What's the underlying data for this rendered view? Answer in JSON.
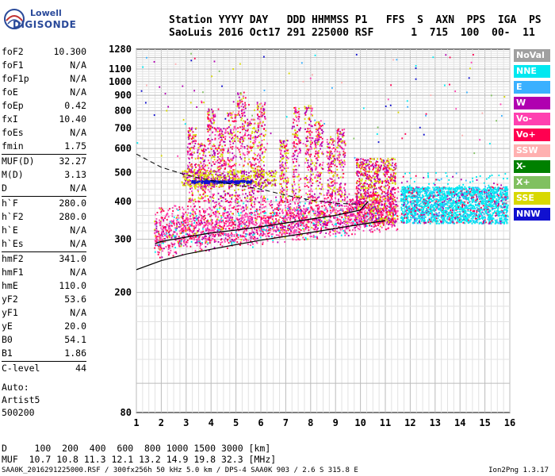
{
  "logo": {
    "line1": "Lowell",
    "line2": "DIGISONDE"
  },
  "header": {
    "line1": "Station YYYY DAY   DDD HHMMSS P1   FFS  S  AXN  PPS  IGA  PS",
    "line2": "SaoLuis 2016 Oct17 291 225000 RSF      1  715  100  00-  11"
  },
  "params": [
    [
      {
        "name": "foF2",
        "value": "10.300"
      },
      {
        "name": "foF1",
        "value": "N/A"
      },
      {
        "name": "foF1p",
        "value": "N/A"
      },
      {
        "name": "foE",
        "value": "N/A"
      },
      {
        "name": "foEp",
        "value": "0.42"
      },
      {
        "name": "fxI",
        "value": "10.40"
      },
      {
        "name": "foEs",
        "value": "N/A"
      },
      {
        "name": "fmin",
        "value": "1.75"
      }
    ],
    [
      {
        "name": "MUF(D)",
        "value": "32.27"
      },
      {
        "name": "M(D)",
        "value": "3.13"
      },
      {
        "name": "D",
        "value": "N/A"
      }
    ],
    [
      {
        "name": "h`F",
        "value": "280.0"
      },
      {
        "name": "h`F2",
        "value": "280.0"
      },
      {
        "name": "h`E",
        "value": "N/A"
      },
      {
        "name": "h`Es",
        "value": "N/A"
      }
    ],
    [
      {
        "name": "hmF2",
        "value": "341.0"
      },
      {
        "name": "hmF1",
        "value": "N/A"
      },
      {
        "name": "hmE",
        "value": "110.0"
      },
      {
        "name": "yF2",
        "value": "53.6"
      },
      {
        "name": "yF1",
        "value": "N/A"
      },
      {
        "name": "yE",
        "value": "20.0"
      },
      {
        "name": "B0",
        "value": "54.1"
      },
      {
        "name": "B1",
        "value": "1.86"
      }
    ],
    [
      {
        "name": "C-level",
        "value": "44"
      }
    ]
  ],
  "auto": {
    "line1": "Auto:",
    "line2": "Artist5",
    "line3": "500200"
  },
  "bottom": {
    "d_line": "D     100  200  400  600  800 1000 1500 3000 [km]",
    "muf_line": "MUF  10.7 10.8 11.3 12.1 13.2 14.9 19.8 32.3 [MHz]"
  },
  "footer": {
    "left": "SAA0K_2016291225000.RSF / 300fx256h 50 kHz 5.0 km / DPS-4 SAA0K 903 / 2.6 S 315.8 E",
    "right": "Ion2Png 1.3.17"
  },
  "legend": [
    {
      "label": "NoVal",
      "color": "#a0a0a0"
    },
    {
      "label": "NNE",
      "color": "#00e8f0"
    },
    {
      "label": "E",
      "color": "#3ab0ff"
    },
    {
      "label": "W",
      "color": "#b000b0"
    },
    {
      "label": "Vo-",
      "color": "#ff40b0"
    },
    {
      "label": "Vo+",
      "color": "#ff0050"
    },
    {
      "label": "SSW",
      "color": "#ffb0b0"
    },
    {
      "label": "X-",
      "color": "#008000"
    },
    {
      "label": "X+",
      "color": "#80c060"
    },
    {
      "label": "SSE",
      "color": "#d8d800"
    },
    {
      "label": "NNW",
      "color": "#1010d0"
    }
  ],
  "chart_data": {
    "type": "scatter",
    "title": "",
    "xlabel": "",
    "ylabel": "",
    "x_unit": "MHz",
    "y_unit": "km",
    "xlim": [
      1,
      16
    ],
    "ylim": [
      80,
      1280
    ],
    "y_scale": "log",
    "x_ticks": [
      1,
      2,
      3,
      4,
      5,
      6,
      7,
      8,
      9,
      10,
      11,
      12,
      13,
      14,
      15,
      16
    ],
    "y_ticks": [
      80,
      200,
      300,
      400,
      500,
      600,
      700,
      800,
      900,
      1000,
      1100,
      1280
    ],
    "grid": true,
    "series": [
      {
        "name": "O-trace profile",
        "points": [
          [
            1.75,
            290
          ],
          [
            2,
            295
          ],
          [
            3,
            305
          ],
          [
            4,
            315
          ],
          [
            5,
            322
          ],
          [
            6,
            330
          ],
          [
            7,
            340
          ],
          [
            8,
            350
          ],
          [
            9,
            360
          ],
          [
            10,
            375
          ],
          [
            10.3,
            400
          ]
        ]
      },
      {
        "name": "Real height profile",
        "points": [
          [
            1,
            238
          ],
          [
            2,
            255
          ],
          [
            3,
            268
          ],
          [
            4,
            278
          ],
          [
            5,
            288
          ],
          [
            6,
            298
          ],
          [
            7,
            307
          ],
          [
            8,
            316
          ],
          [
            9,
            326
          ],
          [
            10,
            336
          ],
          [
            11,
            346
          ]
        ]
      },
      {
        "name": "Upper profile",
        "points": [
          [
            1,
            575
          ],
          [
            2,
            520
          ],
          [
            3,
            490
          ],
          [
            4,
            470
          ],
          [
            5,
            455
          ],
          [
            6,
            440
          ],
          [
            7,
            420
          ],
          [
            8,
            405
          ],
          [
            9,
            395
          ],
          [
            10,
            392
          ]
        ]
      }
    ],
    "echo_clusters": [
      {
        "color": "NNE",
        "x": [
          11.6,
          15.9
        ],
        "y": [
          330,
          470
        ],
        "density": "high"
      },
      {
        "color": "Vo-",
        "x": [
          1.7,
          11.5
        ],
        "y": [
          280,
          420
        ],
        "density": "high"
      },
      {
        "color": "W",
        "x": [
          2.5,
          9.5
        ],
        "y": [
          420,
          950
        ],
        "density": "medium"
      },
      {
        "color": "SSE",
        "x": [
          2.8,
          6.5
        ],
        "y": [
          440,
          520
        ],
        "density": "medium"
      },
      {
        "color": "NNW",
        "x": [
          3.2,
          5.6
        ],
        "y": [
          450,
          480
        ],
        "density": "low"
      }
    ]
  }
}
